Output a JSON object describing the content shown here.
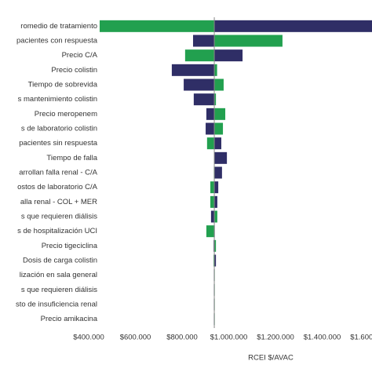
{
  "chart_data": {
    "type": "tornado",
    "x_label": "RCEI $/AVAC",
    "base_value": 938000,
    "categories": [
      "romedio de tratamiento",
      "pacientes con respuesta",
      "Precio C/A",
      "Precio colistin",
      "Tiempo de sobrevida",
      "s mantenimiento colistin",
      "Precio meropenem",
      "s de laboratorio colistin",
      "pacientes sin respuesta",
      "Tiempo de falla",
      "arrollan falla renal - C/A",
      "ostos de laboratorio C/A",
      "alla renal -  COL + MER",
      "s que requieren diálisis",
      "s de hospitalización UCI",
      "Precio tigeciclina",
      "Dosis de carga colistin",
      "lización en sala general",
      "s que requieren diálisis",
      "sto de insuficiencia renal",
      "Precio amikacina"
    ],
    "series": [
      {
        "color": "#22a04f",
        "values": [
          447000,
          1230000,
          813000,
          950000,
          978000,
          945000,
          985000,
          975000,
          907000,
          940000,
          936000,
          921000,
          921000,
          951000,
          904000,
          945000,
          935000,
          940000,
          940000,
          940000,
          940000
        ]
      },
      {
        "color": "#2f2e66",
        "values": [
          1650000,
          847000,
          1059000,
          756000,
          807000,
          850000,
          904000,
          901000,
          968000,
          992000,
          971000,
          955000,
          951000,
          924000,
          940000,
          935000,
          945000,
          936000,
          936000,
          936000,
          936000
        ]
      }
    ],
    "xlim": [
      400000,
      1600000
    ],
    "xticks": [
      {
        "value": 400000,
        "label": "$400.000"
      },
      {
        "value": 600000,
        "label": "$600.000"
      },
      {
        "value": 800000,
        "label": "$800.000"
      },
      {
        "value": 1000000,
        "label": "$1.000.000"
      },
      {
        "value": 1200000,
        "label": "$1.200.000"
      },
      {
        "value": 1400000,
        "label": "$1.400.000"
      },
      {
        "value": 1600000,
        "label": "$1.600.000"
      }
    ]
  }
}
